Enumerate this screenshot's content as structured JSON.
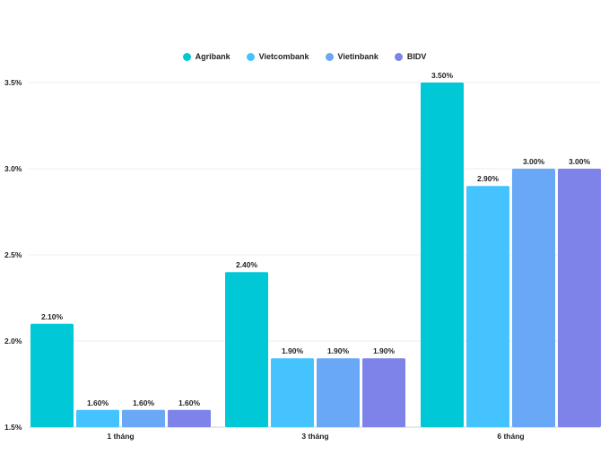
{
  "chart_data": {
    "type": "bar",
    "categories": [
      "1 tháng",
      "3 tháng",
      "6 tháng"
    ],
    "series": [
      {
        "name": "Agribank",
        "color": "#00c8d7",
        "values": [
          2.1,
          2.4,
          3.5
        ],
        "labels": [
          "2.10%",
          "2.40%",
          "3.50%"
        ]
      },
      {
        "name": "Vietcombank",
        "color": "#45c3ff",
        "values": [
          1.6,
          1.9,
          2.9
        ],
        "labels": [
          "1.60%",
          "1.90%",
          "2.90%"
        ]
      },
      {
        "name": "Vietinbank",
        "color": "#68a8f7",
        "values": [
          1.6,
          1.9,
          3.0
        ],
        "labels": [
          "1.60%",
          "1.90%",
          "3.00%"
        ]
      },
      {
        "name": "BIDV",
        "color": "#7d83e9",
        "values": [
          1.6,
          1.9,
          3.0
        ],
        "labels": [
          "1.60%",
          "1.90%",
          "3.00%"
        ]
      }
    ],
    "yticks": [
      {
        "value": 1.5,
        "label": "1.5%"
      },
      {
        "value": 2.0,
        "label": "2.0%"
      },
      {
        "value": 2.5,
        "label": "2.5%"
      },
      {
        "value": 3.0,
        "label": "3.0%"
      },
      {
        "value": 3.5,
        "label": "3.5%"
      }
    ],
    "ylim": [
      1.5,
      3.5
    ],
    "grid": true,
    "legend_position": "top-center",
    "title": "",
    "xlabel": "",
    "ylabel": ""
  }
}
